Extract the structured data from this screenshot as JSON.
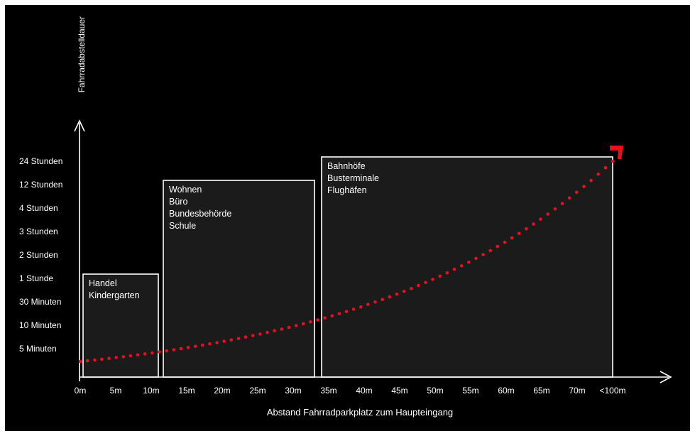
{
  "chart_data": {
    "type": "area",
    "title": "",
    "xlabel": "Abstand Fahrradparkplatz zum Haupteingang",
    "ylabel": "Fahrradabstelldauer",
    "x_ticks": [
      "0m",
      "5m",
      "10m",
      "15m",
      "20m",
      "25m",
      "30m",
      "35m",
      "40m",
      "45m",
      "50m",
      "55m",
      "60m",
      "65m",
      "70m",
      "<100m"
    ],
    "y_ticks": [
      "5 Minuten",
      "10 Minuten",
      "30 Minuten",
      "1 Stunde",
      "2 Stunden",
      "3 Stunden",
      "4 Stunden",
      "12 Stunden",
      "24 Stunden"
    ],
    "regions": [
      {
        "x_start": 0.4,
        "x_end": 11.0,
        "y_top": "1 Stunde",
        "labels": [
          "Handel",
          "Kindergarten"
        ]
      },
      {
        "x_start": 11.7,
        "x_end": 33.0,
        "y_top": "12 Stunden",
        "labels": [
          "Wohnen",
          "Büro",
          "Bundesbehörde",
          "Schule"
        ]
      },
      {
        "x_start": 34.0,
        "x_end": 75.0,
        "y_top": "24 Stunden",
        "labels": [
          "Bahnhöfe",
          "Busterminale",
          "Flughäfen"
        ]
      }
    ],
    "curve": {
      "type": "exponential",
      "style": "dotted",
      "color": "#e8101e",
      "x_start": 0,
      "x_end": 75,
      "y_start_level": -0.55,
      "y_end_level": 8.0
    },
    "grid": false,
    "legend": "none"
  },
  "colors": {
    "background": "#000000",
    "axis": "#ffffff",
    "region_fill": "#1b1b1b",
    "region_stroke": "#ffffff",
    "curve": "#e8101e"
  }
}
